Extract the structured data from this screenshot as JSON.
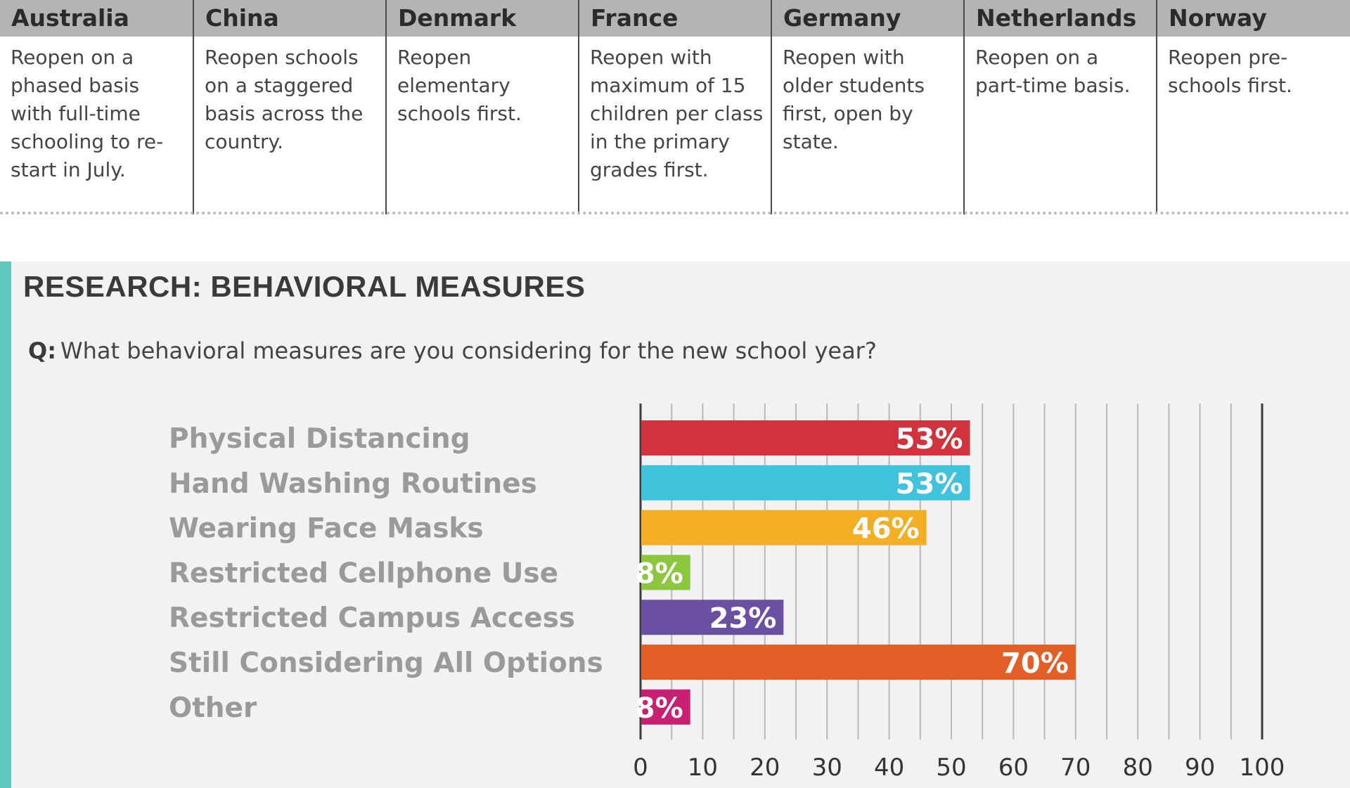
{
  "countries": [
    {
      "name": "Australia",
      "policy": "Reopen on a phased basis with full-time schooling to re-start in July."
    },
    {
      "name": "China",
      "policy": "Reopen schools on a staggered basis across the country."
    },
    {
      "name": "Denmark",
      "policy": "Reopen elementary schools first."
    },
    {
      "name": "France",
      "policy": "Reopen with maximum of 15 children per class in the primary grades first."
    },
    {
      "name": "Germany",
      "policy": "Reopen with older students first, open by state."
    },
    {
      "name": "Netherlands",
      "policy": "Reopen on a part-time basis."
    },
    {
      "name": "Norway",
      "policy": "Reopen pre-schools first."
    }
  ],
  "research": {
    "title": "RESEARCH: BEHAVIORAL MEASURES",
    "question_prefix": "Q:",
    "question": "What behavioral measures are you considering for the new school year?"
  },
  "colors": {
    "header_bg": "#b3b4b6",
    "panel_bg": "#f1f2f3",
    "accent": "#5dc9c1",
    "category_label": "#9a9a9a"
  },
  "chart_data": {
    "type": "bar",
    "orientation": "horizontal",
    "categories": [
      "Physical Distancing",
      "Hand Washing Routines",
      "Wearing Face Masks",
      "Restricted Cellphone Use",
      "Restricted Campus Access",
      "Still Considering All Options",
      "Other"
    ],
    "values": [
      53,
      53,
      46,
      8,
      23,
      70,
      8
    ],
    "labels": [
      "53%",
      "53%",
      "46%",
      "8%",
      "23%",
      "70%",
      "8%"
    ],
    "bar_colors": [
      "#d1323c",
      "#40c1dc",
      "#f3ae23",
      "#8cc63f",
      "#6b4fa3",
      "#e35f25",
      "#c81f73"
    ],
    "xlim": [
      0,
      100
    ],
    "xticks": [
      0,
      10,
      20,
      30,
      40,
      50,
      60,
      70,
      80,
      90,
      100
    ],
    "grid": true
  }
}
